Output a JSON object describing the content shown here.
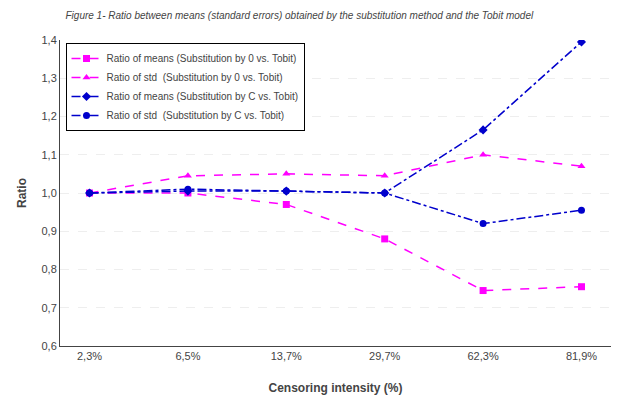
{
  "chart_data": {
    "type": "line",
    "title": "Figure 1- Ratio between means (standard errors) obtained by the substitution method and the Tobit model",
    "xlabel": "Censoring intensity (%)",
    "ylabel": "Ratio",
    "categories": [
      "2,3%",
      "6,5%",
      "13,7%",
      "29,7%",
      "62,3%",
      "81,9%"
    ],
    "series": [
      {
        "name": "Ratio of means (Substitution by 0 vs. Tobit)",
        "color": "#FF00FF",
        "line_style": "dash",
        "marker": "square",
        "values": [
          1.0,
          1.0,
          0.97,
          0.88,
          0.745,
          0.755
        ]
      },
      {
        "name": "Ratio of std  (Substitution by 0 vs. Tobit)",
        "color": "#FF00FF",
        "line_style": "dash",
        "marker": "triangle-up",
        "values": [
          1.0,
          1.045,
          1.05,
          1.045,
          1.1,
          1.07
        ]
      },
      {
        "name": "Ratio of means (Substitution by C vs. Tobit)",
        "color": "#0000CC",
        "line_style": "dashdot",
        "marker": "diamond",
        "values": [
          1.0,
          1.005,
          1.005,
          1.0,
          1.165,
          1.395
        ]
      },
      {
        "name": "Ratio of std  (Substitution by C vs. Tobit)",
        "color": "#0000CC",
        "line_style": "dashdot",
        "marker": "circle",
        "values": [
          1.0,
          1.01,
          1.005,
          1.0,
          0.92,
          0.955
        ]
      }
    ],
    "ylim": [
      0.6,
      1.4
    ],
    "yticks": [
      {
        "value": 0.6,
        "label": "0,6"
      },
      {
        "value": 0.7,
        "label": "0,7"
      },
      {
        "value": 0.8,
        "label": "0,8"
      },
      {
        "value": 0.9,
        "label": "0,9"
      },
      {
        "value": 1.0,
        "label": "1,0"
      },
      {
        "value": 1.1,
        "label": "1,1"
      },
      {
        "value": 1.2,
        "label": "1,2"
      },
      {
        "value": 1.3,
        "label": "1,3"
      },
      {
        "value": 1.4,
        "label": "1,4"
      }
    ],
    "grid": true,
    "legend": "upper left"
  }
}
